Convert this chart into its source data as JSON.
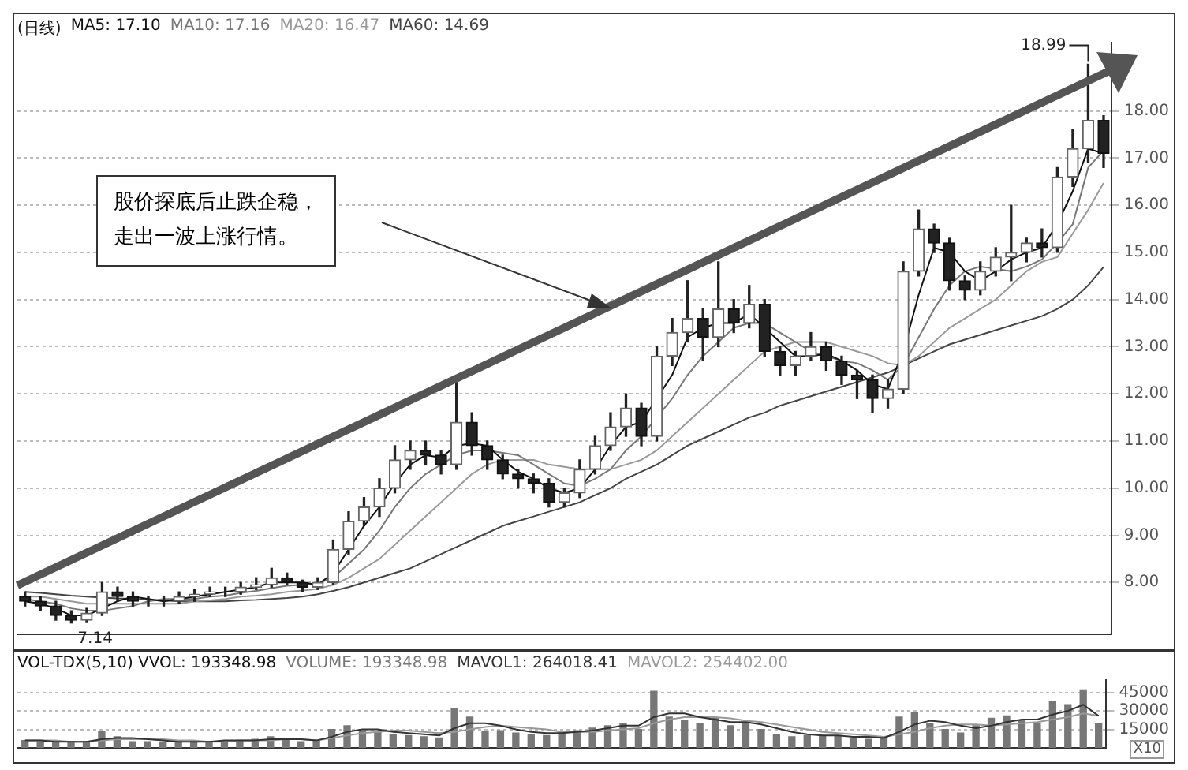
{
  "chart_data": [
    {
      "type": "candlestick",
      "title": "(日线)",
      "legend": "top left",
      "tick_labels": "y",
      "grid": "y",
      "categories": [
        null,
        null,
        null,
        null,
        null,
        null,
        null,
        null,
        null,
        null,
        null,
        null,
        null,
        null,
        null,
        null,
        null,
        null,
        null,
        null,
        null,
        null,
        null,
        null,
        null,
        null,
        null,
        null,
        null,
        null,
        null,
        null,
        null,
        null,
        null,
        null,
        null,
        null,
        null,
        null,
        null,
        null,
        null,
        null,
        null,
        null,
        null,
        null,
        null,
        null,
        null,
        null,
        null,
        null,
        null,
        null,
        null,
        null,
        null,
        null,
        null,
        null,
        null,
        null,
        null,
        null,
        null,
        null,
        null,
        null,
        null
      ],
      "ohlc": [
        [
          7.7,
          7.8,
          7.5,
          7.6
        ],
        [
          7.6,
          7.7,
          7.4,
          7.5
        ],
        [
          7.5,
          7.6,
          7.2,
          7.3
        ],
        [
          7.3,
          7.4,
          7.14,
          7.2
        ],
        [
          7.2,
          7.45,
          7.15,
          7.35
        ],
        [
          7.35,
          8.0,
          7.3,
          7.8
        ],
        [
          7.8,
          7.9,
          7.6,
          7.7
        ],
        [
          7.7,
          7.8,
          7.5,
          7.6
        ],
        [
          7.6,
          7.7,
          7.5,
          7.6
        ],
        [
          7.6,
          7.7,
          7.5,
          7.6
        ],
        [
          7.6,
          7.8,
          7.55,
          7.7
        ],
        [
          7.7,
          7.85,
          7.6,
          7.75
        ],
        [
          7.75,
          7.9,
          7.7,
          7.8
        ],
        [
          7.8,
          7.9,
          7.7,
          7.8
        ],
        [
          7.8,
          8.0,
          7.75,
          7.9
        ],
        [
          7.9,
          8.1,
          7.85,
          7.95
        ],
        [
          7.95,
          8.3,
          7.9,
          8.1
        ],
        [
          8.1,
          8.2,
          7.95,
          8.0
        ],
        [
          8.0,
          8.05,
          7.8,
          7.9
        ],
        [
          7.9,
          8.1,
          7.85,
          8.0
        ],
        [
          8.0,
          8.9,
          7.95,
          8.7
        ],
        [
          8.7,
          9.5,
          8.6,
          9.3
        ],
        [
          9.3,
          9.8,
          9.2,
          9.6
        ],
        [
          9.6,
          10.2,
          9.4,
          10.0
        ],
        [
          10.0,
          10.9,
          9.9,
          10.6
        ],
        [
          10.6,
          11.0,
          10.4,
          10.8
        ],
        [
          10.8,
          11.0,
          10.5,
          10.7
        ],
        [
          10.7,
          10.8,
          10.3,
          10.5
        ],
        [
          10.5,
          12.3,
          10.4,
          11.4
        ],
        [
          11.4,
          11.6,
          10.7,
          10.9
        ],
        [
          10.9,
          11.0,
          10.4,
          10.6
        ],
        [
          10.6,
          10.7,
          10.2,
          10.3
        ],
        [
          10.3,
          10.4,
          10.0,
          10.2
        ],
        [
          10.2,
          10.3,
          9.9,
          10.1
        ],
        [
          10.1,
          10.2,
          9.6,
          9.7
        ],
        [
          9.7,
          10.0,
          9.6,
          9.9
        ],
        [
          9.9,
          10.6,
          9.8,
          10.4
        ],
        [
          10.4,
          11.1,
          10.3,
          10.9
        ],
        [
          10.9,
          11.6,
          10.8,
          11.3
        ],
        [
          11.3,
          12.0,
          11.1,
          11.7
        ],
        [
          11.7,
          11.8,
          10.9,
          11.1
        ],
        [
          11.1,
          13.0,
          11.0,
          12.8
        ],
        [
          12.8,
          13.6,
          12.6,
          13.3
        ],
        [
          13.3,
          14.4,
          13.1,
          13.6
        ],
        [
          13.6,
          13.8,
          12.7,
          13.2
        ],
        [
          13.2,
          14.8,
          13.0,
          13.8
        ],
        [
          13.8,
          14.0,
          13.3,
          13.5
        ],
        [
          13.5,
          14.3,
          13.4,
          13.9
        ],
        [
          13.9,
          14.0,
          12.8,
          12.9
        ],
        [
          12.9,
          13.0,
          12.4,
          12.6
        ],
        [
          12.6,
          12.9,
          12.4,
          12.8
        ],
        [
          12.8,
          13.3,
          12.7,
          13.0
        ],
        [
          13.0,
          13.1,
          12.5,
          12.7
        ],
        [
          12.7,
          12.8,
          12.2,
          12.4
        ],
        [
          12.4,
          12.5,
          11.9,
          12.3
        ],
        [
          12.3,
          12.4,
          11.6,
          11.9
        ],
        [
          11.9,
          12.3,
          11.7,
          12.1
        ],
        [
          12.1,
          14.8,
          12.0,
          14.6
        ],
        [
          14.6,
          15.9,
          14.5,
          15.5
        ],
        [
          15.5,
          15.6,
          15.0,
          15.2
        ],
        [
          15.2,
          15.3,
          14.2,
          14.4
        ],
        [
          14.4,
          14.5,
          14.0,
          14.2
        ],
        [
          14.2,
          14.8,
          14.1,
          14.6
        ],
        [
          14.6,
          15.1,
          14.5,
          14.9
        ],
        [
          14.9,
          16.0,
          14.4,
          15.0
        ],
        [
          15.0,
          15.3,
          14.8,
          15.2
        ],
        [
          15.2,
          15.5,
          14.9,
          15.1
        ],
        [
          15.1,
          16.8,
          15.0,
          16.6
        ],
        [
          16.6,
          17.6,
          16.4,
          17.2
        ],
        [
          17.2,
          18.99,
          16.9,
          17.8
        ],
        [
          17.8,
          17.9,
          16.8,
          17.1
        ]
      ],
      "series": [
        {
          "name": "MA5: 17.10",
          "type": "line",
          "color": "#111111",
          "values": [
            7.6,
            7.55,
            7.45,
            7.3,
            7.3,
            7.45,
            7.6,
            7.7,
            7.65,
            7.6,
            7.65,
            7.7,
            7.75,
            7.8,
            7.85,
            7.9,
            8.0,
            8.0,
            8.0,
            7.95,
            8.2,
            8.7,
            9.2,
            9.6,
            10.1,
            10.5,
            10.7,
            10.65,
            10.9,
            10.95,
            10.9,
            10.6,
            10.35,
            10.2,
            10.0,
            9.9,
            10.0,
            10.4,
            10.9,
            11.3,
            11.4,
            11.9,
            12.4,
            13.2,
            13.4,
            13.5,
            13.5,
            13.7,
            13.4,
            13.1,
            12.8,
            12.8,
            12.85,
            12.7,
            12.5,
            12.2,
            12.1,
            12.9,
            14.1,
            15.1,
            15.0,
            14.6,
            14.4,
            14.6,
            14.85,
            15.0,
            15.1,
            15.6,
            16.3,
            17.2,
            17.1
          ]
        },
        {
          "name": "MA10: 17.16",
          "type": "line",
          "color": "#777777",
          "values": [
            7.65,
            7.6,
            7.55,
            7.45,
            7.4,
            7.4,
            7.45,
            7.5,
            7.6,
            7.65,
            7.65,
            7.65,
            7.7,
            7.72,
            7.78,
            7.82,
            7.88,
            7.93,
            7.95,
            7.98,
            8.1,
            8.4,
            8.7,
            9.1,
            9.6,
            10.0,
            10.3,
            10.5,
            10.7,
            10.8,
            10.8,
            10.75,
            10.7,
            10.5,
            10.3,
            10.1,
            10.05,
            10.2,
            10.4,
            10.8,
            11.1,
            11.5,
            11.9,
            12.4,
            12.8,
            13.1,
            13.4,
            13.5,
            13.5,
            13.3,
            13.1,
            12.9,
            12.8,
            12.7,
            12.65,
            12.5,
            12.3,
            12.6,
            13.2,
            13.8,
            14.3,
            14.6,
            14.7,
            14.65,
            14.6,
            14.7,
            14.85,
            15.2,
            15.6,
            16.8,
            17.16
          ]
        },
        {
          "name": "MA20: 16.47",
          "type": "line",
          "color": "#999999",
          "values": [
            7.7,
            7.7,
            7.65,
            7.6,
            7.55,
            7.55,
            7.55,
            7.55,
            7.55,
            7.55,
            7.55,
            7.6,
            7.62,
            7.65,
            7.7,
            7.72,
            7.75,
            7.8,
            7.83,
            7.86,
            7.95,
            8.1,
            8.3,
            8.5,
            8.8,
            9.1,
            9.4,
            9.7,
            10.0,
            10.3,
            10.5,
            10.6,
            10.6,
            10.6,
            10.5,
            10.45,
            10.4,
            10.4,
            10.4,
            10.5,
            10.6,
            10.8,
            11.1,
            11.4,
            11.7,
            12.0,
            12.3,
            12.6,
            12.9,
            13.0,
            13.1,
            13.1,
            13.1,
            13.0,
            12.9,
            12.8,
            12.65,
            12.6,
            12.8,
            13.1,
            13.4,
            13.6,
            13.8,
            14.0,
            14.3,
            14.6,
            14.8,
            14.9,
            15.4,
            15.9,
            16.47
          ]
        },
        {
          "name": "MA60: 14.69",
          "type": "line",
          "color": "#444444",
          "values": [
            7.8,
            7.78,
            7.75,
            7.72,
            7.7,
            7.68,
            7.66,
            7.65,
            7.63,
            7.62,
            7.6,
            7.6,
            7.6,
            7.6,
            7.62,
            7.63,
            7.65,
            7.67,
            7.7,
            7.75,
            7.82,
            7.9,
            8.0,
            8.1,
            8.2,
            8.3,
            8.45,
            8.6,
            8.75,
            8.9,
            9.05,
            9.2,
            9.3,
            9.4,
            9.5,
            9.6,
            9.7,
            9.85,
            10.0,
            10.2,
            10.35,
            10.5,
            10.7,
            10.9,
            11.05,
            11.2,
            11.35,
            11.5,
            11.6,
            11.75,
            11.85,
            11.95,
            12.05,
            12.15,
            12.25,
            12.35,
            12.45,
            12.6,
            12.75,
            12.9,
            13.05,
            13.15,
            13.25,
            13.35,
            13.45,
            13.55,
            13.65,
            13.8,
            14.0,
            14.3,
            14.69
          ]
        }
      ],
      "ylim": [
        6.9,
        19.45
      ],
      "yticks": [
        {
          "value": 8,
          "label": "8.00"
        },
        {
          "value": 9,
          "label": "9.00"
        },
        {
          "value": 10,
          "label": "10.00"
        },
        {
          "value": 11,
          "label": "11.00"
        },
        {
          "value": 12,
          "label": "12.00"
        },
        {
          "value": 13,
          "label": "13.00"
        },
        {
          "value": 14,
          "label": "14.00"
        },
        {
          "value": 15,
          "label": "15.00"
        },
        {
          "value": 16,
          "label": "16.00"
        },
        {
          "value": 17,
          "label": "17.00"
        },
        {
          "value": 18,
          "label": "18.00"
        }
      ],
      "annotations": [
        "18.99",
        "7.14",
        "股价探底后止跌企稳，走出一波上涨行情。"
      ]
    },
    {
      "type": "bar",
      "title": "VOL-TDX(5,10) VVOL: 193348.98",
      "legend": "top left",
      "tick_labels": "y",
      "grid": "y",
      "categories": [
        null,
        null,
        null,
        null,
        null,
        null,
        null,
        null,
        null,
        null,
        null,
        null,
        null,
        null,
        null,
        null,
        null,
        null,
        null,
        null,
        null,
        null,
        null,
        null,
        null,
        null,
        null,
        null,
        null,
        null,
        null,
        null,
        null,
        null,
        null,
        null,
        null,
        null,
        null,
        null,
        null,
        null,
        null,
        null,
        null,
        null,
        null,
        null,
        null,
        null,
        null,
        null,
        null,
        null,
        null,
        null,
        null,
        null,
        null,
        null,
        null,
        null,
        null,
        null,
        null,
        null,
        null,
        null,
        null,
        null,
        null
      ],
      "series": [
        {
          "name": "VOLUME: 193348.98",
          "type": "bar",
          "color": "#777777",
          "values": [
            6000,
            5000,
            5000,
            5000,
            4000,
            13000,
            9000,
            5000,
            5000,
            4000,
            5000,
            6000,
            5000,
            6000,
            6000,
            7000,
            9000,
            6000,
            5000,
            6000,
            15000,
            18000,
            14000,
            13000,
            11000,
            10000,
            9000,
            8000,
            32000,
            25000,
            13000,
            14000,
            12000,
            11000,
            10000,
            12000,
            14000,
            16000,
            18000,
            20000,
            15000,
            46000,
            25000,
            22000,
            20000,
            24000,
            18000,
            20000,
            15000,
            11000,
            9000,
            10000,
            10000,
            10000,
            8000,
            7000,
            9000,
            25000,
            29000,
            20000,
            15000,
            12000,
            18000,
            24000,
            26000,
            22000,
            20000,
            38000,
            35000,
            47000,
            20000
          ]
        },
        {
          "name": "MAVOL1: 264018.41",
          "type": "line",
          "color": "#333333",
          "values": [
            6000,
            6000,
            5000,
            5000,
            5000,
            7000,
            8000,
            8000,
            7000,
            6000,
            5000,
            5000,
            5000,
            6000,
            6000,
            6000,
            7000,
            7000,
            7000,
            6000,
            9000,
            13000,
            15000,
            15000,
            13000,
            12000,
            11000,
            10000,
            16000,
            20000,
            20000,
            18000,
            15000,
            13000,
            12000,
            12000,
            13000,
            14000,
            16000,
            18000,
            18000,
            25000,
            28000,
            28000,
            25000,
            23000,
            21000,
            21000,
            19000,
            16000,
            13000,
            11000,
            10000,
            10000,
            9000,
            9000,
            8000,
            13000,
            19000,
            22000,
            21000,
            18000,
            16000,
            18000,
            21000,
            23000,
            23000,
            27000,
            30000,
            35000,
            26000
          ]
        },
        {
          "name": "MAVOL2: 254402.00",
          "type": "line",
          "color": "#999999",
          "values": [
            6000,
            6000,
            6000,
            5000,
            5000,
            6000,
            7000,
            7000,
            7000,
            7000,
            6000,
            6000,
            5000,
            5000,
            6000,
            6000,
            6000,
            7000,
            7000,
            6000,
            8000,
            10000,
            12000,
            13000,
            14000,
            14000,
            13000,
            12000,
            13000,
            15000,
            17000,
            18000,
            17000,
            16000,
            15000,
            13000,
            13000,
            13000,
            14000,
            15000,
            16000,
            20000,
            23000,
            25000,
            25000,
            25000,
            24000,
            22000,
            21000,
            19000,
            17000,
            15000,
            13000,
            12000,
            11000,
            10000,
            9000,
            11000,
            13000,
            16000,
            18000,
            19000,
            19000,
            18000,
            19000,
            20000,
            21000,
            23000,
            25000,
            28000,
            26000
          ]
        }
      ],
      "ylim": [
        0,
        55000
      ],
      "yticks": [
        15000,
        30000,
        45000
      ],
      "annotations": [
        "X10"
      ]
    }
  ]
}
